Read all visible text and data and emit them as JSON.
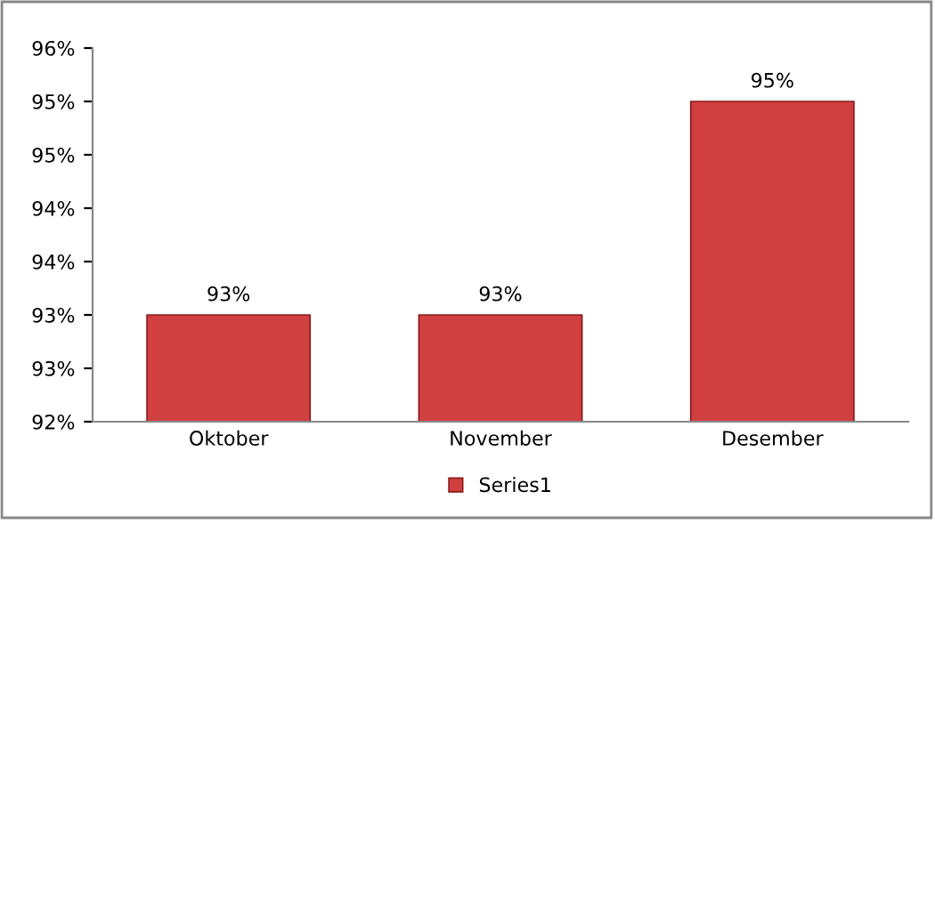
{
  "chart_data": {
    "type": "bar",
    "categories": [
      "Oktober",
      "November",
      "Desember"
    ],
    "series": [
      {
        "name": "Series1",
        "color": "#d04040",
        "values": [
          93.0,
          93.0,
          95.0
        ]
      }
    ],
    "value_labels": [
      "93%",
      "93%",
      "95%"
    ],
    "ylim": [
      92,
      95.5
    ],
    "yticks": [
      {
        "value": 92,
        "label": "92%"
      },
      {
        "value": 92.5,
        "label": "93%"
      },
      {
        "value": 93,
        "label": "93%"
      },
      {
        "value": 93.5,
        "label": "94%"
      },
      {
        "value": 94,
        "label": "94%"
      },
      {
        "value": 94.5,
        "label": "95%"
      },
      {
        "value": 95,
        "label": "95%"
      },
      {
        "value": 95.5,
        "label": "96%"
      }
    ],
    "grid": false,
    "legend": "bottom"
  }
}
